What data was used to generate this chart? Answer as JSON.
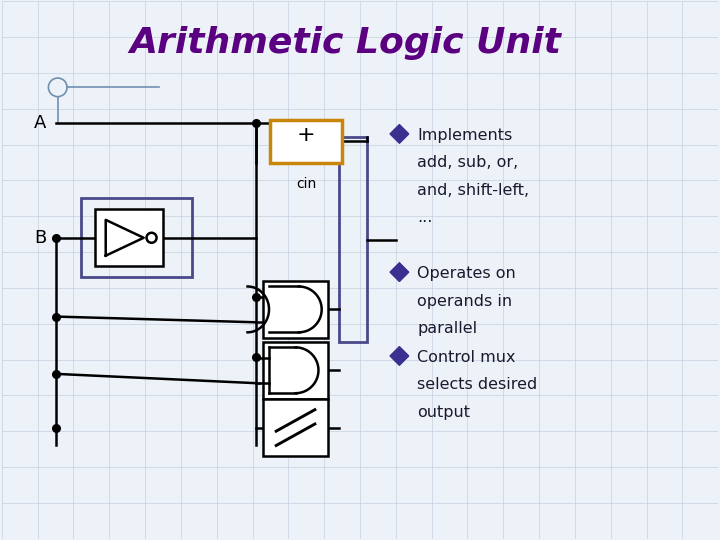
{
  "title": "Arithmetic Logic Unit",
  "title_color": "#5B0080",
  "title_fontsize": 26,
  "bg_color": "#EDF1F8",
  "grid_color": "#C5D0E0",
  "text_color": "#1a1a2e",
  "bullet_color": "#3B3090",
  "bullet_points": [
    [
      "Implements",
      "add, sub, or,",
      "and, shift-left,",
      "..."
    ],
    [
      "Operates on",
      "operands in",
      "parallel"
    ],
    [
      "Control mux",
      "selects desired",
      "output"
    ]
  ],
  "label_A": "A",
  "label_B": "B",
  "label_cin": "cin",
  "label_plus": "+",
  "wire_color": "#000000",
  "adder_box_color": "#C8860A",
  "mux_box_color": "#4A4A8A",
  "logic_box_color": "#000000",
  "figw": 7.2,
  "figh": 5.4
}
